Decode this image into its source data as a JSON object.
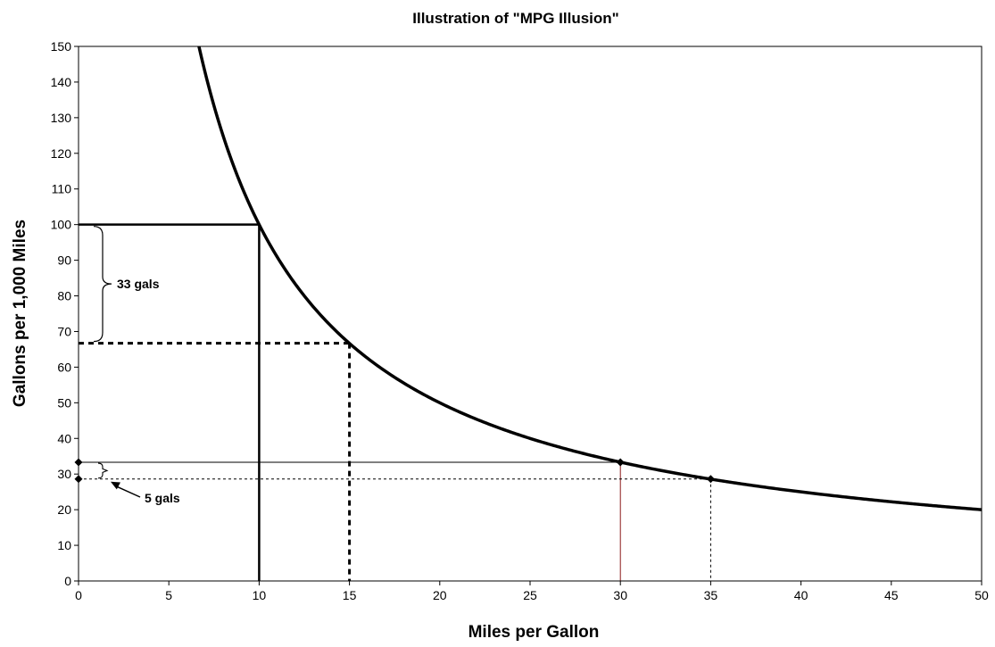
{
  "chart_data": {
    "type": "line",
    "title": "Illustration of \"MPG Illusion\"",
    "xlabel": "Miles per Gallon",
    "ylabel": "Gallons per 1,000 Miles",
    "xlim": [
      0,
      50
    ],
    "ylim": [
      0,
      150
    ],
    "xticks": [
      0,
      5,
      10,
      15,
      20,
      25,
      30,
      35,
      40,
      45,
      50
    ],
    "yticks": [
      0,
      10,
      20,
      30,
      40,
      50,
      60,
      70,
      80,
      90,
      100,
      110,
      120,
      130,
      140,
      150
    ],
    "grid": false,
    "legend": "none",
    "series": [
      {
        "formula": "y = 1000 / x",
        "x": [
          6.67,
          7,
          8,
          9,
          10,
          12,
          15,
          20,
          25,
          30,
          35,
          40,
          45,
          50
        ],
        "y": [
          150,
          142.9,
          125,
          111.1,
          100,
          83.3,
          66.7,
          50,
          40,
          33.3,
          28.6,
          25,
          22.2,
          20
        ],
        "color": "#000000"
      }
    ],
    "markers": [
      {
        "x": 0,
        "y": 33.3
      },
      {
        "x": 0,
        "y": 28.6
      },
      {
        "x": 30,
        "y": 33.3
      },
      {
        "x": 35,
        "y": 28.6
      }
    ],
    "reference_lines": [
      {
        "x": 10,
        "y": 100,
        "style": "solid-thick",
        "color": "#000000"
      },
      {
        "x": 15,
        "y": 66.7,
        "style": "dashed-thick",
        "color": "#000000"
      },
      {
        "x": 30,
        "y": 33.3,
        "style": "solid-thin",
        "color": "#000000",
        "vertical_color": "#8b1a1a"
      },
      {
        "x": 35,
        "y": 28.6,
        "style": "dotted-thin",
        "color": "#000000"
      }
    ],
    "annotations": [
      {
        "text": "33 gals",
        "from": 100,
        "to": 66.7
      },
      {
        "text": "5 gals",
        "from": 33.3,
        "to": 28.6
      }
    ]
  }
}
